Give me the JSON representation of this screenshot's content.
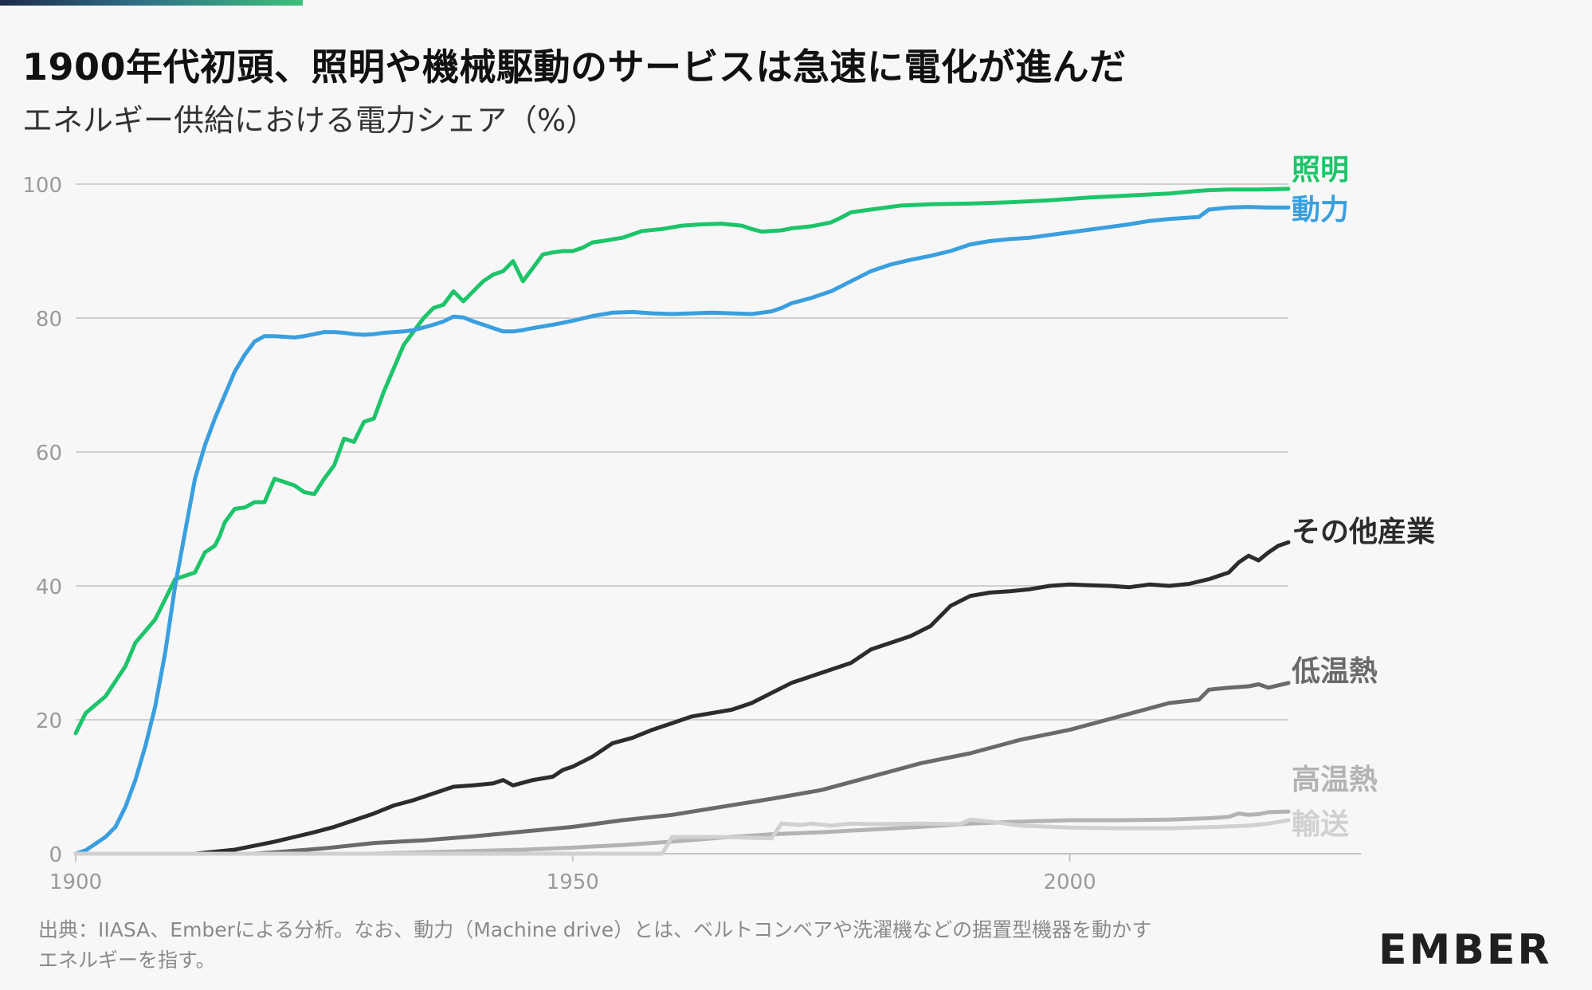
{
  "title": "1900年代初頭、照明や機械駆動のサービスは急速に電化が進んだ",
  "subtitle": "エネルギー供給における電力シェア（%）",
  "footer": {
    "line1": "出典：IIASA、Emberによる分析。なお、動力（Machine drive）とは、ベルトコンベアや洗濯機などの据置型機器を動かす",
    "line2": "エネルギーを指す。"
  },
  "logo": "EMBER",
  "chart_data": {
    "type": "line",
    "title": "1900年代初頭、照明や機械駆動のサービスは急速に電化が進んだ",
    "ylabel": "エネルギー供給における電力シェア（%）",
    "xlabel": "",
    "xlim": [
      1900,
      2022
    ],
    "ylim": [
      0,
      100
    ],
    "x_ticks": [
      1900,
      1950,
      2000
    ],
    "y_ticks": [
      0,
      20,
      40,
      60,
      80,
      100
    ],
    "grid": "horizontal",
    "legend": "direct labels at line ends (right)",
    "series": [
      {
        "name": "照明",
        "color": "#1dc46a",
        "points": [
          [
            1900,
            18
          ],
          [
            1901,
            21
          ],
          [
            1903,
            23.5
          ],
          [
            1905,
            28
          ],
          [
            1906,
            31.5
          ],
          [
            1908,
            35
          ],
          [
            1909,
            38
          ],
          [
            1910,
            41
          ],
          [
            1911,
            41.5
          ],
          [
            1912,
            42
          ],
          [
            1913,
            45
          ],
          [
            1914,
            46
          ],
          [
            1914.5,
            47.5
          ],
          [
            1915,
            49.5
          ],
          [
            1916,
            51.5
          ],
          [
            1917,
            51.7
          ],
          [
            1918,
            52.5
          ],
          [
            1919,
            52.5
          ],
          [
            1920,
            56
          ],
          [
            1921,
            55.5
          ],
          [
            1922,
            55
          ],
          [
            1923,
            54
          ],
          [
            1924,
            53.7
          ],
          [
            1925,
            56
          ],
          [
            1926,
            58
          ],
          [
            1927,
            62
          ],
          [
            1928,
            61.5
          ],
          [
            1929,
            64.5
          ],
          [
            1930,
            65
          ],
          [
            1931,
            69
          ],
          [
            1932,
            72.5
          ],
          [
            1933,
            76
          ],
          [
            1934,
            78
          ],
          [
            1935,
            80
          ],
          [
            1936,
            81.5
          ],
          [
            1937,
            82
          ],
          [
            1938,
            84
          ],
          [
            1939,
            82.5
          ],
          [
            1940,
            84
          ],
          [
            1941,
            85.5
          ],
          [
            1942,
            86.5
          ],
          [
            1943,
            87
          ],
          [
            1944,
            88.5
          ],
          [
            1945,
            85.5
          ],
          [
            1946,
            87.5
          ],
          [
            1947,
            89.5
          ],
          [
            1948,
            89.8
          ],
          [
            1949,
            90
          ],
          [
            1950,
            90
          ],
          [
            1951,
            90.5
          ],
          [
            1952,
            91.3
          ],
          [
            1953,
            91.5
          ],
          [
            1955,
            92
          ],
          [
            1957,
            93
          ],
          [
            1959,
            93.3
          ],
          [
            1961,
            93.8
          ],
          [
            1963,
            94
          ],
          [
            1965,
            94.1
          ],
          [
            1967,
            93.8
          ],
          [
            1968,
            93.3
          ],
          [
            1969,
            92.9
          ],
          [
            1970,
            93
          ],
          [
            1971,
            93.1
          ],
          [
            1972,
            93.4
          ],
          [
            1974,
            93.7
          ],
          [
            1976,
            94.3
          ],
          [
            1977,
            95
          ],
          [
            1978,
            95.8
          ],
          [
            1980,
            96.2
          ],
          [
            1983,
            96.8
          ],
          [
            1986,
            97
          ],
          [
            1990,
            97.1
          ],
          [
            1994,
            97.3
          ],
          [
            1998,
            97.6
          ],
          [
            2002,
            98
          ],
          [
            2006,
            98.3
          ],
          [
            2010,
            98.6
          ],
          [
            2013,
            99
          ],
          [
            2014,
            99.1
          ],
          [
            2016,
            99.2
          ],
          [
            2019,
            99.2
          ],
          [
            2022,
            99.3
          ]
        ]
      },
      {
        "name": "動力",
        "color": "#3a9fdf",
        "points": [
          [
            1900,
            0
          ],
          [
            1901,
            0.5
          ],
          [
            1902,
            1.5
          ],
          [
            1903,
            2.5
          ],
          [
            1904,
            4
          ],
          [
            1905,
            7
          ],
          [
            1906,
            11
          ],
          [
            1907,
            16
          ],
          [
            1908,
            22
          ],
          [
            1909,
            30
          ],
          [
            1910,
            40
          ],
          [
            1911,
            48
          ],
          [
            1912,
            56
          ],
          [
            1913,
            61
          ],
          [
            1914,
            65
          ],
          [
            1915,
            68.5
          ],
          [
            1916,
            72
          ],
          [
            1917,
            74.5
          ],
          [
            1918,
            76.5
          ],
          [
            1919,
            77.3
          ],
          [
            1920,
            77.3
          ],
          [
            1921,
            77.2
          ],
          [
            1922,
            77.1
          ],
          [
            1923,
            77.3
          ],
          [
            1924,
            77.6
          ],
          [
            1925,
            77.9
          ],
          [
            1926,
            77.9
          ],
          [
            1927,
            77.8
          ],
          [
            1928,
            77.6
          ],
          [
            1929,
            77.5
          ],
          [
            1930,
            77.6
          ],
          [
            1931,
            77.8
          ],
          [
            1932,
            77.9
          ],
          [
            1933,
            78
          ],
          [
            1934,
            78.2
          ],
          [
            1935,
            78.6
          ],
          [
            1936,
            79
          ],
          [
            1937,
            79.5
          ],
          [
            1938,
            80.2
          ],
          [
            1939,
            80.1
          ],
          [
            1940,
            79.5
          ],
          [
            1941,
            79
          ],
          [
            1942,
            78.5
          ],
          [
            1943,
            78
          ],
          [
            1944,
            78
          ],
          [
            1945,
            78.2
          ],
          [
            1946,
            78.5
          ],
          [
            1948,
            79
          ],
          [
            1950,
            79.6
          ],
          [
            1952,
            80.3
          ],
          [
            1954,
            80.8
          ],
          [
            1956,
            80.9
          ],
          [
            1958,
            80.7
          ],
          [
            1960,
            80.6
          ],
          [
            1962,
            80.7
          ],
          [
            1964,
            80.8
          ],
          [
            1966,
            80.7
          ],
          [
            1968,
            80.6
          ],
          [
            1969,
            80.8
          ],
          [
            1970,
            81
          ],
          [
            1971,
            81.5
          ],
          [
            1972,
            82.2
          ],
          [
            1974,
            83
          ],
          [
            1976,
            84
          ],
          [
            1978,
            85.5
          ],
          [
            1980,
            87
          ],
          [
            1982,
            88
          ],
          [
            1984,
            88.7
          ],
          [
            1986,
            89.3
          ],
          [
            1988,
            90
          ],
          [
            1990,
            91
          ],
          [
            1992,
            91.5
          ],
          [
            1994,
            91.8
          ],
          [
            1996,
            92
          ],
          [
            1998,
            92.4
          ],
          [
            2000,
            92.8
          ],
          [
            2002,
            93.2
          ],
          [
            2004,
            93.6
          ],
          [
            2006,
            94
          ],
          [
            2008,
            94.5
          ],
          [
            2010,
            94.8
          ],
          [
            2012,
            95
          ],
          [
            2013,
            95.1
          ],
          [
            2014,
            96.2
          ],
          [
            2016,
            96.5
          ],
          [
            2018,
            96.6
          ],
          [
            2020,
            96.5
          ],
          [
            2022,
            96.5
          ]
        ]
      },
      {
        "name": "その他産業",
        "color": "#2c2c2c",
        "points": [
          [
            1900,
            0
          ],
          [
            1912,
            0
          ],
          [
            1914,
            0.3
          ],
          [
            1916,
            0.6
          ],
          [
            1918,
            1.2
          ],
          [
            1920,
            1.8
          ],
          [
            1922,
            2.5
          ],
          [
            1924,
            3.2
          ],
          [
            1926,
            4
          ],
          [
            1928,
            5
          ],
          [
            1930,
            6
          ],
          [
            1932,
            7.2
          ],
          [
            1934,
            8
          ],
          [
            1936,
            9
          ],
          [
            1938,
            10
          ],
          [
            1940,
            10.2
          ],
          [
            1942,
            10.5
          ],
          [
            1943,
            11
          ],
          [
            1944,
            10.2
          ],
          [
            1946,
            11
          ],
          [
            1948,
            11.5
          ],
          [
            1949,
            12.5
          ],
          [
            1950,
            13
          ],
          [
            1952,
            14.5
          ],
          [
            1954,
            16.5
          ],
          [
            1956,
            17.3
          ],
          [
            1958,
            18.5
          ],
          [
            1960,
            19.5
          ],
          [
            1962,
            20.5
          ],
          [
            1964,
            21
          ],
          [
            1966,
            21.5
          ],
          [
            1968,
            22.5
          ],
          [
            1970,
            24
          ],
          [
            1972,
            25.5
          ],
          [
            1974,
            26.5
          ],
          [
            1976,
            27.5
          ],
          [
            1978,
            28.5
          ],
          [
            1980,
            30.5
          ],
          [
            1982,
            31.5
          ],
          [
            1984,
            32.5
          ],
          [
            1986,
            34
          ],
          [
            1988,
            37
          ],
          [
            1990,
            38.5
          ],
          [
            1992,
            39
          ],
          [
            1994,
            39.2
          ],
          [
            1996,
            39.5
          ],
          [
            1998,
            40
          ],
          [
            2000,
            40.2
          ],
          [
            2002,
            40.1
          ],
          [
            2004,
            40
          ],
          [
            2006,
            39.8
          ],
          [
            2008,
            40.2
          ],
          [
            2010,
            40
          ],
          [
            2012,
            40.3
          ],
          [
            2014,
            41
          ],
          [
            2016,
            42
          ],
          [
            2017,
            43.5
          ],
          [
            2018,
            44.5
          ],
          [
            2019,
            43.8
          ],
          [
            2020,
            45
          ],
          [
            2021,
            46
          ],
          [
            2022,
            46.5
          ]
        ]
      },
      {
        "name": "低温熱",
        "color": "#6a6a6a",
        "points": [
          [
            1900,
            0
          ],
          [
            1918,
            0
          ],
          [
            1920,
            0.2
          ],
          [
            1925,
            0.8
          ],
          [
            1930,
            1.6
          ],
          [
            1935,
            2
          ],
          [
            1940,
            2.6
          ],
          [
            1945,
            3.3
          ],
          [
            1950,
            4
          ],
          [
            1955,
            5
          ],
          [
            1960,
            5.8
          ],
          [
            1965,
            7
          ],
          [
            1970,
            8.2
          ],
          [
            1975,
            9.5
          ],
          [
            1980,
            11.5
          ],
          [
            1985,
            13.5
          ],
          [
            1990,
            15
          ],
          [
            1995,
            17
          ],
          [
            2000,
            18.5
          ],
          [
            2005,
            20.5
          ],
          [
            2010,
            22.5
          ],
          [
            2013,
            23
          ],
          [
            2014,
            24.5
          ],
          [
            2016,
            24.8
          ],
          [
            2018,
            25
          ],
          [
            2019,
            25.3
          ],
          [
            2020,
            24.8
          ],
          [
            2022,
            25.5
          ]
        ]
      },
      {
        "name": "高温熱",
        "color": "#b3b3b3",
        "points": [
          [
            1900,
            0
          ],
          [
            1930,
            0
          ],
          [
            1935,
            0.2
          ],
          [
            1940,
            0.4
          ],
          [
            1945,
            0.6
          ],
          [
            1950,
            0.9
          ],
          [
            1955,
            1.3
          ],
          [
            1960,
            1.8
          ],
          [
            1965,
            2.4
          ],
          [
            1970,
            2.9
          ],
          [
            1975,
            3.2
          ],
          [
            1980,
            3.6
          ],
          [
            1985,
            4
          ],
          [
            1990,
            4.5
          ],
          [
            1995,
            4.8
          ],
          [
            2000,
            5
          ],
          [
            2005,
            5
          ],
          [
            2010,
            5.1
          ],
          [
            2014,
            5.3
          ],
          [
            2016,
            5.5
          ],
          [
            2017,
            6
          ],
          [
            2018,
            5.8
          ],
          [
            2019,
            5.9
          ],
          [
            2020,
            6.2
          ],
          [
            2022,
            6.3
          ]
        ]
      },
      {
        "name": "輸送",
        "color": "#d0d0d0",
        "points": [
          [
            1900,
            0
          ],
          [
            1959,
            0
          ],
          [
            1960,
            2.5
          ],
          [
            1965,
            2.5
          ],
          [
            1970,
            2.3
          ],
          [
            1971,
            4.5
          ],
          [
            1973,
            4.3
          ],
          [
            1974,
            4.5
          ],
          [
            1976,
            4.2
          ],
          [
            1978,
            4.5
          ],
          [
            1980,
            4.4
          ],
          [
            1985,
            4.5
          ],
          [
            1989,
            4.4
          ],
          [
            1990,
            5.1
          ],
          [
            1992,
            4.8
          ],
          [
            1995,
            4.2
          ],
          [
            2000,
            3.9
          ],
          [
            2005,
            3.8
          ],
          [
            2010,
            3.8
          ],
          [
            2015,
            4
          ],
          [
            2018,
            4.2
          ],
          [
            2020,
            4.5
          ],
          [
            2022,
            5
          ]
        ]
      }
    ]
  }
}
